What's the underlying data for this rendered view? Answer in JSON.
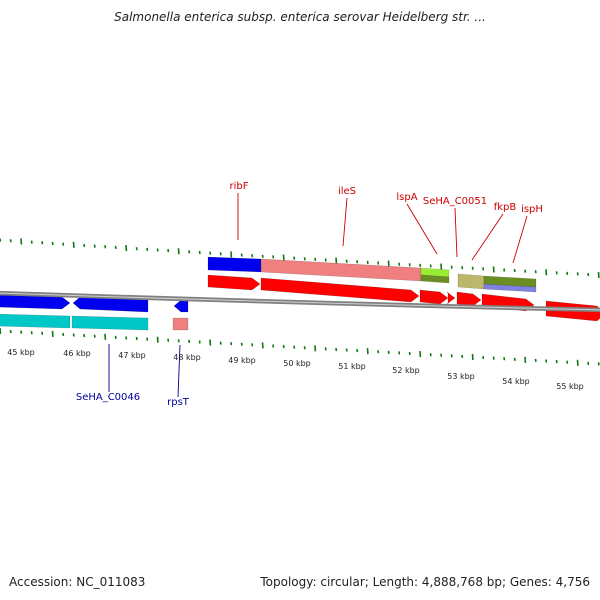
{
  "title": "Salmonella enterica subsp. enterica serovar Heidelberg str. ...",
  "accession": "Accession: NC_011083",
  "summary": "Topology: circular; Length: 4,888,768 bp; Genes: 4,756",
  "colors": {
    "red": "#ff0000",
    "blue": "#0000ee",
    "cyan": "#00c8c8",
    "salmon": "#f08080",
    "lightgreen": "#99ee33",
    "olive": "#6b8e23",
    "khaki": "#bdb76b",
    "lavender": "#8080e0",
    "tick": "#117711",
    "axis": "#808080",
    "label_red": "#cc0000",
    "label_blue": "#000099"
  },
  "kbp_labels": [
    "45 kbp",
    "46 kbp",
    "47 kbp",
    "48 kbp",
    "49 kbp",
    "50 kbp",
    "51 kbp",
    "52 kbp",
    "53 kbp",
    "54 kbp",
    "55 kbp"
  ],
  "gene_labels_top": [
    "ribF",
    "ileS",
    "lspA",
    "SeHA_C0051",
    "fkpB",
    "ispH"
  ],
  "gene_labels_bottom": [
    "SeHA_C0046",
    "rpsT"
  ]
}
